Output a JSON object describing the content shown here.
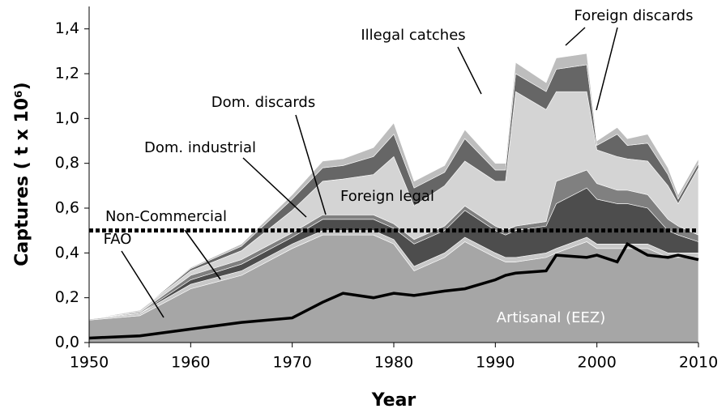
{
  "chart_data": {
    "type": "stacked_area",
    "y_label": "Captures ( t x 10⁶)",
    "x_label": "Year",
    "x": [
      1950,
      1955,
      1960,
      1965,
      1970,
      1973,
      1975,
      1978,
      1980,
      1982,
      1985,
      1987,
      1990,
      1991,
      1992,
      1995,
      1996,
      1999,
      2000,
      2002,
      2003,
      2005,
      2007,
      2008,
      2010
    ],
    "series": [
      {
        "name": "Artisanal (EEZ)",
        "color": "#a6a6a6",
        "values": [
          0.1,
          0.12,
          0.24,
          0.3,
          0.42,
          0.48,
          0.48,
          0.48,
          0.44,
          0.32,
          0.38,
          0.45,
          0.38,
          0.36,
          0.36,
          0.38,
          0.4,
          0.45,
          0.42,
          0.42,
          0.42,
          0.42,
          0.38,
          0.38,
          0.38
        ]
      },
      {
        "name": "Non-Commercial",
        "color": "#c8c8c8",
        "values": [
          0.005,
          0.01,
          0.02,
          0.02,
          0.02,
          0.02,
          0.02,
          0.02,
          0.02,
          0.02,
          0.02,
          0.02,
          0.02,
          0.02,
          0.02,
          0.02,
          0.02,
          0.02,
          0.02,
          0.02,
          0.02,
          0.02,
          0.02,
          0.02,
          0.02
        ]
      },
      {
        "name": "Dom. industrial",
        "color": "#4d4d4d",
        "values": [
          0,
          0,
          0.02,
          0.03,
          0.03,
          0.05,
          0.05,
          0.05,
          0.05,
          0.1,
          0.1,
          0.12,
          0.1,
          0.1,
          0.12,
          0.12,
          0.2,
          0.22,
          0.2,
          0.18,
          0.18,
          0.16,
          0.1,
          0.08,
          0.05
        ]
      },
      {
        "name": "Dom. discards",
        "color": "#808080",
        "values": [
          0,
          0.005,
          0.02,
          0.02,
          0.02,
          0.02,
          0.02,
          0.02,
          0.02,
          0.02,
          0.02,
          0.02,
          0.02,
          0.02,
          0.02,
          0.02,
          0.1,
          0.08,
          0.07,
          0.06,
          0.06,
          0.06,
          0.05,
          0.04,
          0.03
        ]
      },
      {
        "name": "Foreign legal",
        "color": "#d4d4d4",
        "values": [
          0,
          0.01,
          0.02,
          0.04,
          0.1,
          0.15,
          0.16,
          0.18,
          0.3,
          0.15,
          0.18,
          0.2,
          0.2,
          0.22,
          0.6,
          0.5,
          0.4,
          0.35,
          0.15,
          0.15,
          0.14,
          0.15,
          0.15,
          0.1,
          0.3
        ]
      },
      {
        "name": "Illegal catches",
        "color": "#666666",
        "values": [
          0,
          0,
          0.01,
          0.02,
          0.05,
          0.06,
          0.06,
          0.08,
          0.1,
          0.08,
          0.06,
          0.1,
          0.05,
          0.05,
          0.08,
          0.08,
          0.1,
          0.12,
          0.02,
          0.1,
          0.06,
          0.08,
          0.05,
          0.02,
          0.02
        ]
      },
      {
        "name": "Foreign discards",
        "color": "#bdbdbd",
        "values": [
          0,
          0,
          0.005,
          0.01,
          0.02,
          0.03,
          0.03,
          0.04,
          0.05,
          0.03,
          0.03,
          0.04,
          0.03,
          0.03,
          0.05,
          0.04,
          0.05,
          0.05,
          0.02,
          0.03,
          0.03,
          0.04,
          0.03,
          0.02,
          0.02
        ]
      }
    ],
    "line": {
      "name": "FAO",
      "color": "#000000",
      "values": [
        0.02,
        0.03,
        0.06,
        0.09,
        0.11,
        0.18,
        0.22,
        0.2,
        0.22,
        0.21,
        0.23,
        0.24,
        0.28,
        0.3,
        0.31,
        0.32,
        0.39,
        0.38,
        0.39,
        0.36,
        0.44,
        0.39,
        0.38,
        0.39,
        0.37
      ]
    },
    "reference_line": 0.5,
    "xlim": [
      1950,
      2010
    ],
    "xticks": [
      1950,
      1960,
      1970,
      1980,
      1990,
      2000,
      2010
    ],
    "ylim": [
      0,
      1.5
    ],
    "yticks": [
      {
        "value": 0,
        "label": "0,0"
      },
      {
        "value": 0.2,
        "label": "0,2"
      },
      {
        "value": 0.4,
        "label": "0,4"
      },
      {
        "value": 0.6,
        "label": "0,6"
      },
      {
        "value": 0.8,
        "label": "0,8"
      },
      {
        "value": 1.0,
        "label": "1,0"
      },
      {
        "value": 1.2,
        "label": "1,2"
      },
      {
        "value": 1.4,
        "label": "1,4"
      }
    ]
  }
}
